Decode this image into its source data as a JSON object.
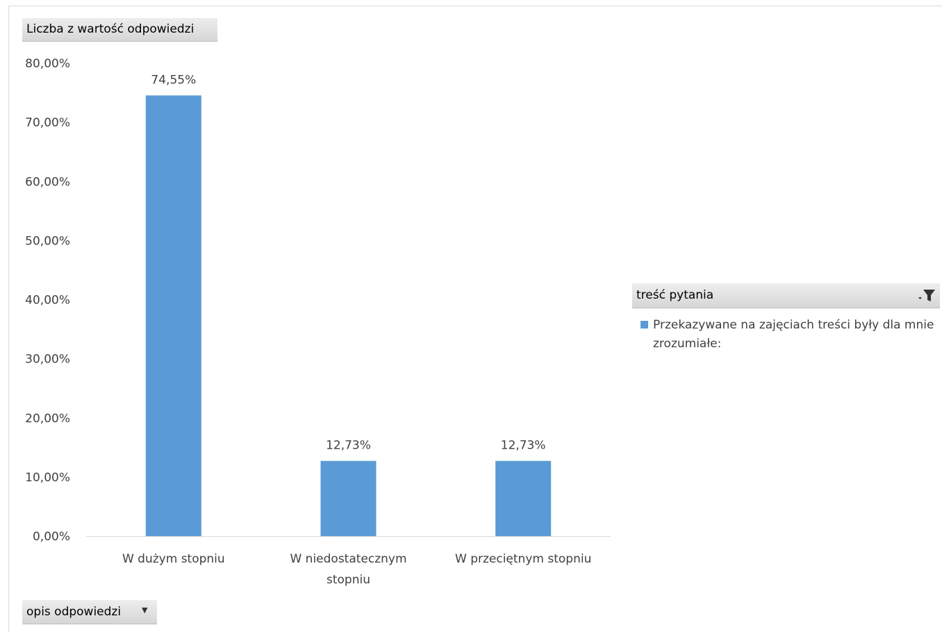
{
  "value_field": {
    "label": "Liczba z wartość odpowiedzi"
  },
  "axis_field": {
    "label": "opis odpowiedzi",
    "icon": "dropdown-arrow-icon",
    "arrow_glyph": "▼"
  },
  "legend": {
    "field_label": "treść pytania",
    "filter_icon": "filter-icon",
    "series_label": "Przekazywane na zajęciach treści były dla mnie zrozumiałe:"
  },
  "chart_data": {
    "type": "bar",
    "categories": [
      [
        "W dużym stopniu"
      ],
      [
        "W niedostatecznym",
        "stopniu"
      ],
      [
        "W przeciętnym stopniu"
      ]
    ],
    "series": [
      {
        "name": "Przekazywane na zajęciach treści były dla mnie zrozumiałe:",
        "values": [
          74.55,
          12.73,
          12.73
        ],
        "data_labels": [
          "74,55%",
          "12,73%",
          "12,73%"
        ],
        "color": "#5b9bd5"
      }
    ],
    "ylim": [
      0,
      80
    ],
    "y_ticks": [
      0,
      10,
      20,
      30,
      40,
      50,
      60,
      70,
      80
    ],
    "y_tick_labels": [
      "0,00%",
      "10,00%",
      "20,00%",
      "30,00%",
      "40,00%",
      "50,00%",
      "60,00%",
      "70,00%",
      "80,00%"
    ],
    "grid": false,
    "legend_position": "right"
  }
}
